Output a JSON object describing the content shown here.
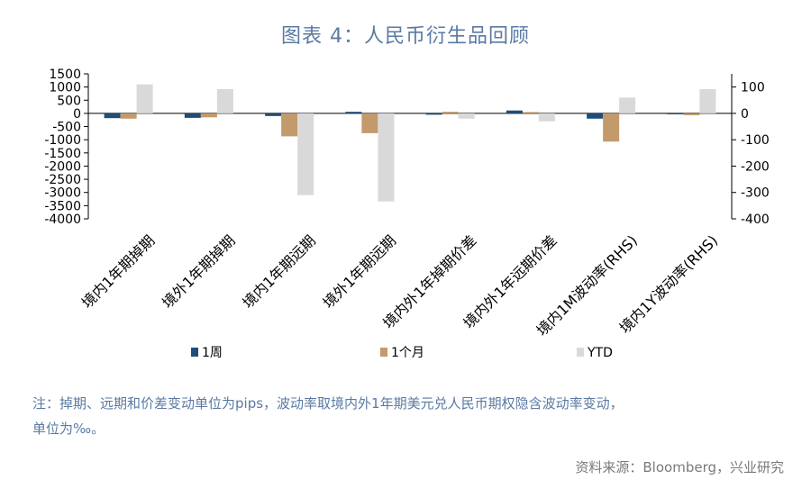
{
  "title": "图表 4：人民币衍生品回顾",
  "note_line1": "注：掉期、远期和价差变动单位为pips，波动率取境内外1年期美元兑人民币期权隐含波动率变动，",
  "note_line2": "单位为‰。",
  "source": "资料来源：Bloomberg，兴业研究",
  "colors": {
    "week": "#1f4e79",
    "month": "#c29a6b",
    "ytd": "#d9d9d9",
    "axis": "#000000",
    "text": "#000000"
  },
  "chart_data": {
    "type": "bar",
    "categories": [
      "境内1年期掉期",
      "境外1年期掉期",
      "境内1年期远期",
      "境外1年期远期",
      "境内外1年掉期价差",
      "境内外1年远期价差",
      "境内1M波动率(RHS)",
      "境内1Y波动率(RHS)"
    ],
    "series": [
      {
        "name": "1周",
        "values": [
          -180,
          -170,
          -100,
          60,
          -50,
          110,
          -20,
          -3
        ],
        "axis": [
          0,
          0,
          0,
          0,
          0,
          0,
          1,
          1
        ]
      },
      {
        "name": "1个月",
        "values": [
          -200,
          -150,
          -870,
          -750,
          60,
          50,
          -107,
          -7
        ],
        "axis": [
          0,
          0,
          0,
          0,
          0,
          0,
          1,
          1
        ]
      },
      {
        "name": "YTD",
        "values": [
          1100,
          920,
          -3100,
          -3340,
          -200,
          -300,
          60,
          92
        ],
        "axis": [
          0,
          0,
          0,
          0,
          0,
          0,
          1,
          1
        ]
      }
    ],
    "ylim_left": [
      -4000,
      1500
    ],
    "yticks_left": [
      1500,
      1000,
      500,
      0,
      -500,
      -1000,
      -1500,
      -2000,
      -2500,
      -3000,
      -3500,
      -4000
    ],
    "ylim_right": [
      -400,
      150
    ],
    "yticks_right": [
      100,
      0,
      -100,
      -200,
      -300,
      -400
    ],
    "legend_position": "bottom"
  }
}
